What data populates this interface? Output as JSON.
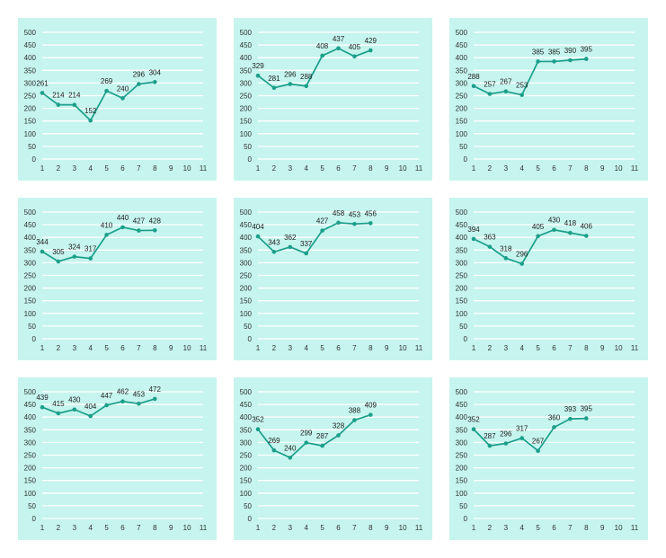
{
  "colors": {
    "panel_background": "#c6f4ee",
    "gridline": "#ffffff",
    "series": "#1b9f8a",
    "text": "#333333"
  },
  "chart_data": [
    {
      "type": "line",
      "x": [
        1,
        2,
        3,
        4,
        5,
        6,
        7,
        8
      ],
      "xticks": [
        1,
        2,
        3,
        4,
        5,
        6,
        7,
        8,
        9,
        10,
        11
      ],
      "yticks": [
        0,
        50,
        100,
        150,
        200,
        250,
        300,
        350,
        400,
        450,
        500
      ],
      "ylim": [
        0,
        500
      ],
      "grid": true,
      "series": [
        {
          "values": [
            261,
            214,
            214,
            152,
            269,
            240,
            296,
            304
          ]
        }
      ]
    },
    {
      "type": "line",
      "x": [
        1,
        2,
        3,
        4,
        5,
        6,
        7,
        8
      ],
      "xticks": [
        1,
        2,
        3,
        4,
        5,
        6,
        7,
        8,
        9,
        10,
        11
      ],
      "yticks": [
        0,
        50,
        100,
        150,
        200,
        250,
        300,
        350,
        400,
        450,
        500
      ],
      "ylim": [
        0,
        500
      ],
      "grid": true,
      "series": [
        {
          "values": [
            329,
            281,
            296,
            288,
            408,
            437,
            405,
            429
          ]
        }
      ]
    },
    {
      "type": "line",
      "x": [
        1,
        2,
        3,
        4,
        5,
        6,
        7,
        8
      ],
      "xticks": [
        1,
        2,
        3,
        4,
        5,
        6,
        7,
        8,
        9,
        10,
        11
      ],
      "yticks": [
        0,
        50,
        100,
        150,
        200,
        250,
        300,
        350,
        400,
        450,
        500
      ],
      "ylim": [
        0,
        500
      ],
      "grid": true,
      "series": [
        {
          "values": [
            288,
            257,
            267,
            253,
            385,
            385,
            390,
            395
          ]
        }
      ]
    },
    {
      "type": "line",
      "x": [
        1,
        2,
        3,
        4,
        5,
        6,
        7,
        8
      ],
      "xticks": [
        1,
        2,
        3,
        4,
        5,
        6,
        7,
        8,
        9,
        10,
        11
      ],
      "yticks": [
        0,
        50,
        100,
        150,
        200,
        250,
        300,
        350,
        400,
        450,
        500
      ],
      "ylim": [
        0,
        500
      ],
      "grid": true,
      "series": [
        {
          "values": [
            344,
            305,
            324,
            317,
            410,
            440,
            427,
            428
          ]
        }
      ]
    },
    {
      "type": "line",
      "x": [
        1,
        2,
        3,
        4,
        5,
        6,
        7,
        8
      ],
      "xticks": [
        1,
        2,
        3,
        4,
        5,
        6,
        7,
        8,
        9,
        10,
        11
      ],
      "yticks": [
        0,
        50,
        100,
        150,
        200,
        250,
        300,
        350,
        400,
        450,
        500
      ],
      "ylim": [
        0,
        500
      ],
      "grid": true,
      "series": [
        {
          "values": [
            404,
            343,
            362,
            337,
            427,
            458,
            453,
            456
          ]
        }
      ]
    },
    {
      "type": "line",
      "x": [
        1,
        2,
        3,
        4,
        5,
        6,
        7,
        8
      ],
      "xticks": [
        1,
        2,
        3,
        4,
        5,
        6,
        7,
        8,
        9,
        10,
        11
      ],
      "yticks": [
        0,
        50,
        100,
        150,
        200,
        250,
        300,
        350,
        400,
        450,
        500
      ],
      "ylim": [
        0,
        500
      ],
      "grid": true,
      "series": [
        {
          "values": [
            394,
            363,
            318,
            296,
            405,
            430,
            418,
            406
          ]
        }
      ]
    },
    {
      "type": "line",
      "x": [
        1,
        2,
        3,
        4,
        5,
        6,
        7,
        8
      ],
      "xticks": [
        1,
        2,
        3,
        4,
        5,
        6,
        7,
        8,
        9,
        10,
        11
      ],
      "yticks": [
        0,
        50,
        100,
        150,
        200,
        250,
        300,
        350,
        400,
        450,
        500
      ],
      "ylim": [
        0,
        500
      ],
      "grid": true,
      "series": [
        {
          "values": [
            439,
            415,
            430,
            404,
            447,
            462,
            453,
            472
          ]
        }
      ]
    },
    {
      "type": "line",
      "x": [
        1,
        2,
        3,
        4,
        5,
        6,
        7,
        8
      ],
      "xticks": [
        1,
        2,
        3,
        4,
        5,
        6,
        7,
        8,
        9,
        10,
        11
      ],
      "yticks": [
        0,
        50,
        100,
        150,
        200,
        250,
        300,
        350,
        400,
        450,
        500
      ],
      "ylim": [
        0,
        500
      ],
      "grid": true,
      "series": [
        {
          "values": [
            352,
            269,
            240,
            299,
            287,
            328,
            388,
            409
          ]
        }
      ]
    },
    {
      "type": "line",
      "x": [
        1,
        2,
        3,
        4,
        5,
        6,
        7,
        8
      ],
      "xticks": [
        1,
        2,
        3,
        4,
        5,
        6,
        7,
        8,
        9,
        10,
        11
      ],
      "yticks": [
        0,
        50,
        100,
        150,
        200,
        250,
        300,
        350,
        400,
        450,
        500
      ],
      "ylim": [
        0,
        500
      ],
      "grid": true,
      "series": [
        {
          "values": [
            352,
            287,
            296,
            317,
            267,
            360,
            393,
            395
          ]
        }
      ]
    }
  ]
}
